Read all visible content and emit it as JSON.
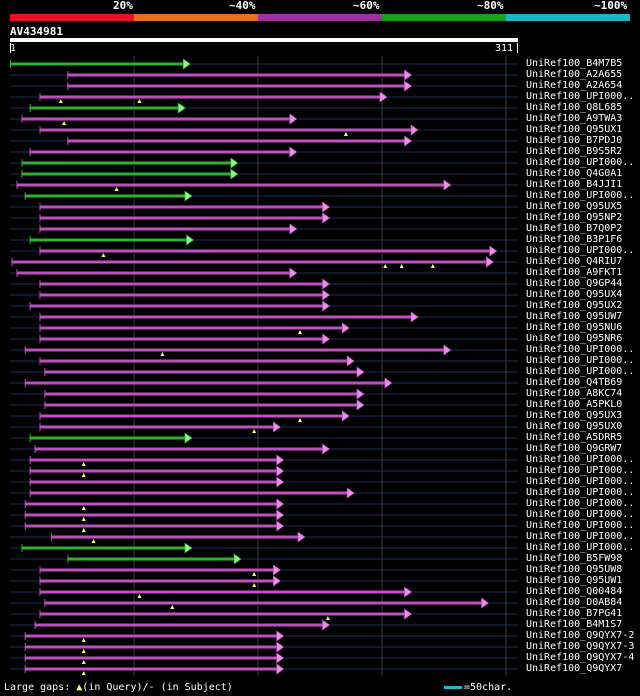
{
  "legend": {
    "labels": [
      "20%",
      "~40%",
      "~60%",
      "~80%",
      "~100%"
    ],
    "colors": [
      "#e8102c",
      "#e87018",
      "#a030a0",
      "#18a018",
      "#18b8c8"
    ]
  },
  "query": {
    "title": "AV434981",
    "start": "1",
    "end": "311",
    "length": 311
  },
  "hits": [
    {
      "name": "UniRef100_B4M7B5",
      "color": "green",
      "qs": 1,
      "qe": 111
    },
    {
      "name": "UniRef100_A2A655",
      "color": "purple",
      "qs": 36,
      "qe": 246
    },
    {
      "name": "UniRef100_A2A654",
      "color": "purple",
      "qs": 36,
      "qe": 246
    },
    {
      "name": "UniRef100_UPI000..",
      "color": "purple",
      "qs": 19,
      "qe": 231,
      "gaps": [
        32,
        80
      ]
    },
    {
      "name": "UniRef100_Q8L685",
      "color": "green",
      "qs": 13,
      "qe": 108
    },
    {
      "name": "UniRef100_A9TWA3",
      "color": "purple",
      "qs": 8,
      "qe": 176,
      "gaps": [
        34
      ]
    },
    {
      "name": "UniRef100_Q95UX1",
      "color": "purple",
      "qs": 19,
      "qe": 250,
      "gaps": [
        206
      ]
    },
    {
      "name": "UniRef100_B7PDJ0",
      "color": "purple",
      "qs": 36,
      "qe": 246
    },
    {
      "name": "UniRef100_B9S5R2",
      "color": "purple",
      "qs": 13,
      "qe": 176
    },
    {
      "name": "UniRef100_UPI000..",
      "color": "green",
      "qs": 8,
      "qe": 140
    },
    {
      "name": "UniRef100_Q4G0A1",
      "color": "green",
      "qs": 8,
      "qe": 140
    },
    {
      "name": "UniRef100_B4JJI1",
      "color": "purple",
      "qs": 5,
      "qe": 270,
      "gaps": [
        66
      ]
    },
    {
      "name": "UniRef100_UPI000..",
      "color": "green",
      "qs": 10,
      "qe": 112
    },
    {
      "name": "UniRef100_Q95UX5",
      "color": "purple",
      "qs": 19,
      "qe": 196
    },
    {
      "name": "UniRef100_Q95NP2",
      "color": "purple",
      "qs": 19,
      "qe": 196
    },
    {
      "name": "UniRef100_B7Q0P2",
      "color": "purple",
      "qs": 19,
      "qe": 176
    },
    {
      "name": "UniRef100_B3P1F6",
      "color": "green",
      "qs": 13,
      "qe": 113
    },
    {
      "name": "UniRef100_UPI000..",
      "color": "purple",
      "qs": 19,
      "qe": 298,
      "gaps": [
        58
      ]
    },
    {
      "name": "UniRef100_Q4RIU7",
      "color": "purple",
      "qs": 2,
      "qe": 296,
      "gaps": [
        230,
        240,
        259
      ]
    },
    {
      "name": "UniRef100_A9FKT1",
      "color": "purple",
      "qs": 5,
      "qe": 176
    },
    {
      "name": "UniRef100_Q9GP44",
      "color": "purple",
      "qs": 19,
      "qe": 196
    },
    {
      "name": "UniRef100_Q95UX4",
      "color": "purple",
      "qs": 19,
      "qe": 196
    },
    {
      "name": "UniRef100_Q95UX2",
      "color": "purple",
      "qs": 13,
      "qe": 196
    },
    {
      "name": "UniRef100_Q95UW7",
      "color": "purple",
      "qs": 19,
      "qe": 250
    },
    {
      "name": "UniRef100_Q95NU6",
      "color": "purple",
      "qs": 19,
      "qe": 208,
      "gaps": [
        178
      ]
    },
    {
      "name": "UniRef100_Q95NR6",
      "color": "purple",
      "qs": 19,
      "qe": 196
    },
    {
      "name": "UniRef100_UPI000..",
      "color": "purple",
      "qs": 10,
      "qe": 270,
      "gaps": [
        94
      ]
    },
    {
      "name": "UniRef100_UPI000..",
      "color": "purple",
      "qs": 19,
      "qe": 211
    },
    {
      "name": "UniRef100_UPI000..",
      "color": "purple",
      "qs": 22,
      "qe": 217
    },
    {
      "name": "UniRef100_Q4TB69",
      "color": "purple",
      "qs": 10,
      "qe": 234
    },
    {
      "name": "UniRef100_A8KC74",
      "color": "purple",
      "qs": 22,
      "qe": 217
    },
    {
      "name": "UniRef100_A5PKL0",
      "color": "purple",
      "qs": 22,
      "qe": 217
    },
    {
      "name": "UniRef100_Q95UX3",
      "color": "purple",
      "qs": 19,
      "qe": 208,
      "gaps": [
        178
      ]
    },
    {
      "name": "UniRef100_Q95UX0",
      "color": "purple",
      "qs": 19,
      "qe": 166,
      "gaps": [
        150
      ]
    },
    {
      "name": "UniRef100_A5DRR5",
      "color": "green",
      "qs": 13,
      "qe": 112
    },
    {
      "name": "UniRef100_Q9GRW7",
      "color": "purple",
      "qs": 16,
      "qe": 196
    },
    {
      "name": "UniRef100_UPI000..",
      "color": "purple",
      "qs": 13,
      "qe": 168,
      "gaps": [
        46
      ]
    },
    {
      "name": "UniRef100_UPI000..",
      "color": "purple",
      "qs": 13,
      "qe": 168,
      "gaps": [
        46
      ]
    },
    {
      "name": "UniRef100_UPI000..",
      "color": "purple",
      "qs": 13,
      "qe": 168
    },
    {
      "name": "UniRef100_UPI000..",
      "color": "purple",
      "qs": 13,
      "qe": 211
    },
    {
      "name": "UniRef100_UPI000..",
      "color": "purple",
      "qs": 10,
      "qe": 168,
      "gaps": [
        46
      ]
    },
    {
      "name": "UniRef100_UPI000..",
      "color": "purple",
      "qs": 10,
      "qe": 168,
      "gaps": [
        46
      ]
    },
    {
      "name": "UniRef100_UPI000..",
      "color": "purple",
      "qs": 10,
      "qe": 168,
      "gaps": [
        46
      ]
    },
    {
      "name": "UniRef100_UPI000..",
      "color": "purple",
      "qs": 26,
      "qe": 181,
      "gaps": [
        52
      ]
    },
    {
      "name": "UniRef100_UPI000..",
      "color": "green",
      "qs": 8,
      "qe": 112
    },
    {
      "name": "UniRef100_B5FW98",
      "color": "green",
      "qs": 36,
      "qe": 142
    },
    {
      "name": "UniRef100_Q95UW8",
      "color": "purple",
      "qs": 19,
      "qe": 166,
      "gaps": [
        150
      ]
    },
    {
      "name": "UniRef100_Q95UW1",
      "color": "purple",
      "qs": 19,
      "qe": 166,
      "gaps": [
        150
      ]
    },
    {
      "name": "UniRef100_Q00484",
      "color": "purple",
      "qs": 19,
      "qe": 246,
      "gaps": [
        80
      ]
    },
    {
      "name": "UniRef100_D0AB84",
      "color": "purple",
      "qs": 22,
      "qe": 293,
      "gaps": [
        100
      ]
    },
    {
      "name": "UniRef100_B7PG41",
      "color": "purple",
      "qs": 19,
      "qe": 246,
      "gaps": [
        195
      ]
    },
    {
      "name": "UniRef100_B4M1S7",
      "color": "purple",
      "qs": 16,
      "qe": 196
    },
    {
      "name": "UniRef100_Q9QYX7-2",
      "color": "purple",
      "qs": 10,
      "qe": 168,
      "gaps": [
        46
      ]
    },
    {
      "name": "UniRef100_Q9QYX7-3",
      "color": "purple",
      "qs": 10,
      "qe": 168,
      "gaps": [
        46
      ]
    },
    {
      "name": "UniRef100_Q9QYX7-4",
      "color": "purple",
      "qs": 10,
      "qe": 168,
      "gaps": [
        46
      ]
    },
    {
      "name": "UniRef100_Q9QYX7",
      "color": "purple",
      "qs": 10,
      "qe": 168,
      "gaps": [
        46
      ]
    }
  ],
  "footer": {
    "gaps_text": "Large gaps:",
    "query_text": "(in Query)/",
    "subject_text": "- (in Subject)",
    "scale_text": "=50char."
  },
  "palette": {
    "purple": "#c050c0",
    "green": "#30b030",
    "arrow_purple": "#e890e8",
    "arrow_green": "#90f090",
    "guide": "#1c2a5a",
    "gap": "#ffff60"
  }
}
